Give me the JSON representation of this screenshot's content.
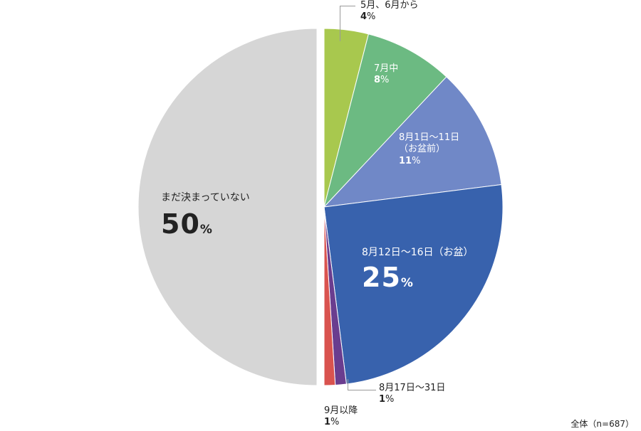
{
  "chart_data": {
    "type": "pie",
    "start_angle_deg": 0,
    "direction": "clockwise",
    "slices": [
      {
        "label": "5月、6月から",
        "value": 4,
        "color": "#a8c84e"
      },
      {
        "label": "7月中",
        "value": 8,
        "color": "#6cba82"
      },
      {
        "label": "8月1日〜11日（お盆前）",
        "value": 11,
        "color": "#7088c7"
      },
      {
        "label": "8月12日〜16日（お盆）",
        "value": 25,
        "color": "#3862ad"
      },
      {
        "label": "8月17日〜31日",
        "value": 1,
        "color": "#6a3d8f"
      },
      {
        "label": "9月以降",
        "value": 1,
        "color": "#d9534f"
      },
      {
        "label": "まだ決まっていない",
        "value": 50,
        "color": "#d6d6d6",
        "exploded": true
      }
    ]
  },
  "labels": {
    "s0_name": "5月、6月から",
    "s0_pct": "4",
    "s1_name": "7月中",
    "s1_pct": "8",
    "s2_name1": "8月1日〜11日",
    "s2_name2": "（お盆前）",
    "s2_pct": "11",
    "s3_name": "8月12日〜16日（お盆）",
    "s3_pct": "25",
    "s4_name": "8月17日〜31日",
    "s4_pct": "1",
    "s5_name": "9月以降",
    "s5_pct": "1",
    "s6_name": "まだ決まっていない",
    "s6_pct": "50",
    "pct_symbol": "%"
  },
  "footnote": "全体（n=687）"
}
